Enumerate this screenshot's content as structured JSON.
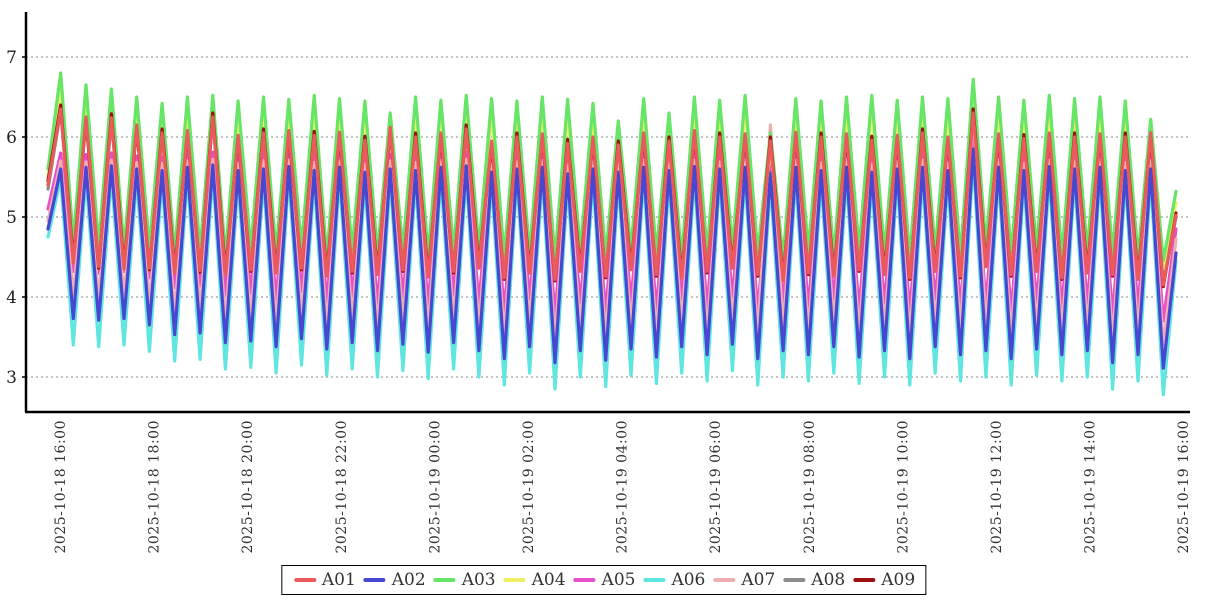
{
  "chart_data": {
    "type": "line",
    "title": "",
    "x_axis": {
      "tick_labels": [
        "2025-10-18 16:00",
        "2025-10-18 18:00",
        "2025-10-18 20:00",
        "2025-10-18 22:00",
        "2025-10-19 00:00",
        "2025-10-19 02:00",
        "2025-10-19 04:00",
        "2025-10-19 06:00",
        "2025-10-19 08:00",
        "2025-10-19 10:00",
        "2025-10-19 12:00",
        "2025-10-19 14:00",
        "2025-10-19 16:00"
      ]
    },
    "y_axis": {
      "ticks": [
        3,
        4,
        5,
        6,
        7
      ],
      "min": 2.56,
      "max": 7.5,
      "grid": "dashed"
    },
    "legend_position": "bottom-center",
    "axis_color": "#000000",
    "grid_color": "#888888",
    "series": [
      {
        "name": "A01",
        "color": "#ea5a5a",
        "z": 9,
        "values": [
          5.4,
          6.35,
          4.42,
          6.25,
          4.38,
          6.24,
          4.35,
          6.15,
          4.36,
          6.05,
          4.3,
          6.08,
          4.33,
          6.25,
          4.28,
          6.02,
          4.34,
          6.05,
          4.3,
          6.08,
          4.36,
          6.02,
          4.26,
          6.06,
          4.32,
          5.96,
          4.28,
          6.12,
          4.34,
          6.0,
          4.25,
          6.05,
          4.32,
          6.1,
          4.36,
          5.95,
          4.24,
          6.0,
          4.3,
          6.04,
          4.22,
          5.92,
          4.32,
          6.0,
          4.26,
          5.9,
          4.34,
          6.05,
          4.28,
          5.95,
          4.24,
          6.08,
          4.32,
          6.0,
          4.36,
          6.04,
          4.28,
          5.95,
          4.2,
          6.06,
          4.3,
          6.0,
          4.26,
          6.04,
          4.34,
          5.96,
          4.28,
          6.02,
          4.24,
          6.05,
          4.32,
          6.0,
          4.26,
          6.3,
          4.38,
          6.04,
          4.28,
          5.98,
          4.32,
          6.05,
          4.24,
          6.0,
          4.3,
          6.04,
          4.28,
          6.0,
          4.22,
          6.05,
          4.15,
          5.02
        ]
      },
      {
        "name": "A02",
        "color": "#4747d1",
        "z": 5,
        "values": [
          4.85,
          5.6,
          3.73,
          5.62,
          3.71,
          5.64,
          3.73,
          5.6,
          3.65,
          5.58,
          3.53,
          5.62,
          3.55,
          5.65,
          3.43,
          5.58,
          3.45,
          5.6,
          3.38,
          5.63,
          3.48,
          5.58,
          3.35,
          5.62,
          3.43,
          5.56,
          3.33,
          5.6,
          3.41,
          5.58,
          3.31,
          5.62,
          3.43,
          5.64,
          3.33,
          5.56,
          3.23,
          5.6,
          3.38,
          5.62,
          3.18,
          5.54,
          3.33,
          5.6,
          3.21,
          5.56,
          3.35,
          5.62,
          3.25,
          5.58,
          3.38,
          5.63,
          3.28,
          5.6,
          3.41,
          5.62,
          3.23,
          5.55,
          3.33,
          5.62,
          3.28,
          5.58,
          3.38,
          5.62,
          3.25,
          5.56,
          3.33,
          5.6,
          3.23,
          5.62,
          3.38,
          5.58,
          3.28,
          5.85,
          3.33,
          5.62,
          3.23,
          5.58,
          3.35,
          5.63,
          3.28,
          5.6,
          3.33,
          5.62,
          3.18,
          5.58,
          3.28,
          5.6,
          3.11,
          4.55
        ]
      },
      {
        "name": "A03",
        "color": "#66e566",
        "z": 7,
        "values": [
          5.6,
          6.8,
          4.7,
          6.65,
          4.65,
          6.6,
          4.6,
          6.5,
          4.62,
          6.42,
          4.55,
          6.5,
          4.58,
          6.52,
          4.52,
          6.45,
          4.6,
          6.5,
          4.55,
          6.47,
          4.62,
          6.52,
          4.5,
          6.48,
          4.58,
          6.45,
          4.55,
          6.3,
          4.6,
          6.5,
          4.52,
          6.46,
          4.58,
          6.52,
          4.62,
          6.48,
          4.5,
          6.45,
          4.55,
          6.5,
          4.48,
          6.47,
          4.58,
          6.42,
          4.52,
          6.2,
          4.6,
          6.48,
          4.55,
          6.3,
          4.5,
          6.5,
          4.58,
          6.46,
          4.62,
          6.52,
          4.55,
          6.05,
          4.48,
          6.48,
          4.58,
          6.45,
          4.52,
          6.5,
          4.6,
          6.52,
          4.55,
          6.46,
          4.5,
          6.5,
          4.58,
          6.48,
          4.52,
          6.72,
          4.65,
          6.5,
          4.55,
          6.46,
          4.6,
          6.52,
          4.52,
          6.48,
          4.58,
          6.5,
          4.55,
          6.45,
          4.5,
          6.22,
          4.45,
          5.32
        ]
      },
      {
        "name": "A04",
        "color": "#efef62",
        "z": 6,
        "values": [
          5.5,
          6.62,
          4.6,
          6.47,
          4.55,
          6.42,
          4.5,
          6.32,
          4.52,
          6.24,
          4.45,
          6.32,
          4.48,
          6.34,
          4.42,
          6.27,
          4.5,
          6.32,
          4.45,
          6.29,
          4.52,
          6.34,
          4.4,
          6.3,
          4.48,
          6.27,
          4.45,
          6.12,
          4.5,
          6.32,
          4.42,
          6.28,
          4.48,
          6.34,
          4.52,
          6.3,
          4.4,
          6.27,
          4.45,
          6.32,
          4.38,
          6.29,
          4.48,
          6.24,
          4.42,
          6.02,
          4.5,
          6.3,
          4.45,
          6.12,
          4.4,
          6.32,
          4.48,
          6.28,
          4.52,
          6.34,
          4.45,
          5.87,
          4.38,
          6.3,
          4.48,
          6.27,
          4.42,
          6.32,
          4.5,
          6.34,
          4.45,
          6.28,
          4.4,
          6.32,
          4.48,
          6.3,
          4.42,
          6.54,
          4.55,
          6.32,
          4.45,
          6.28,
          4.5,
          6.34,
          4.42,
          6.3,
          4.48,
          6.32,
          4.45,
          6.27,
          4.4,
          6.04,
          4.35,
          5.18
        ]
      },
      {
        "name": "A05",
        "color": "#e64fc8",
        "z": 2,
        "values": [
          5.1,
          5.8,
          4.32,
          5.78,
          4.3,
          5.8,
          4.32,
          5.76,
          4.24,
          5.75,
          4.12,
          5.78,
          4.14,
          5.81,
          4.02,
          5.75,
          4.04,
          5.78,
          3.97,
          5.8,
          4.07,
          5.76,
          3.94,
          5.78,
          4.02,
          5.74,
          3.92,
          5.78,
          4.0,
          5.76,
          3.9,
          5.79,
          4.02,
          5.81,
          3.92,
          5.74,
          3.82,
          5.77,
          3.97,
          5.79,
          3.77,
          5.72,
          3.92,
          5.77,
          3.8,
          5.74,
          3.94,
          5.79,
          3.84,
          5.75,
          3.97,
          5.8,
          3.87,
          5.77,
          4.0,
          5.79,
          3.82,
          5.73,
          3.92,
          5.79,
          3.87,
          5.76,
          3.97,
          5.79,
          3.84,
          5.74,
          3.92,
          5.77,
          3.82,
          5.79,
          3.97,
          5.76,
          3.87,
          6.0,
          3.92,
          5.79,
          3.82,
          5.75,
          3.94,
          5.8,
          3.87,
          5.77,
          3.92,
          5.79,
          3.77,
          5.76,
          3.87,
          5.78,
          3.7,
          4.85
        ]
      },
      {
        "name": "A06",
        "color": "#5fe6e0",
        "z": 4,
        "values": [
          4.75,
          5.48,
          3.4,
          5.5,
          3.38,
          5.52,
          3.4,
          5.48,
          3.32,
          5.46,
          3.2,
          5.5,
          3.22,
          5.53,
          3.1,
          5.46,
          3.12,
          5.48,
          3.05,
          5.51,
          3.15,
          5.46,
          3.02,
          5.5,
          3.1,
          5.44,
          3.0,
          5.48,
          3.08,
          5.46,
          2.98,
          5.5,
          3.1,
          5.52,
          3.0,
          5.44,
          2.9,
          5.48,
          3.05,
          5.5,
          2.85,
          5.42,
          3.0,
          5.48,
          2.88,
          5.44,
          3.02,
          5.5,
          2.92,
          5.46,
          3.05,
          5.51,
          2.95,
          5.48,
          3.08,
          5.5,
          2.9,
          5.43,
          3.0,
          5.5,
          2.95,
          5.46,
          3.05,
          5.5,
          2.92,
          5.44,
          3.0,
          5.48,
          2.9,
          5.5,
          3.05,
          5.46,
          2.95,
          5.72,
          3.0,
          5.5,
          2.9,
          5.46,
          3.02,
          5.51,
          2.95,
          5.48,
          3.0,
          5.5,
          2.85,
          5.46,
          2.95,
          5.48,
          2.78,
          4.45
        ]
      },
      {
        "name": "A07",
        "color": "#f0aeb2",
        "z": 3,
        "values": [
          4.95,
          5.7,
          4.02,
          5.69,
          4.0,
          5.71,
          4.02,
          5.68,
          3.94,
          5.67,
          3.82,
          5.7,
          3.84,
          5.72,
          3.72,
          5.67,
          3.74,
          5.7,
          3.67,
          5.71,
          3.77,
          5.68,
          3.64,
          5.7,
          3.72,
          5.66,
          3.62,
          5.7,
          3.7,
          5.68,
          3.6,
          5.71,
          3.72,
          5.72,
          3.62,
          5.66,
          3.52,
          5.69,
          3.67,
          5.71,
          3.47,
          5.65,
          3.62,
          5.69,
          3.5,
          5.66,
          3.64,
          5.71,
          3.54,
          5.67,
          3.67,
          5.71,
          3.57,
          5.69,
          3.7,
          5.71,
          3.52,
          6.15,
          3.62,
          5.71,
          3.57,
          5.68,
          3.67,
          5.71,
          3.54,
          5.66,
          3.62,
          5.69,
          3.52,
          5.71,
          3.67,
          5.68,
          3.57,
          6.35,
          3.62,
          5.71,
          3.52,
          5.67,
          3.64,
          5.71,
          3.57,
          5.69,
          3.62,
          5.71,
          3.47,
          5.68,
          3.57,
          5.7,
          3.4,
          4.72
        ]
      },
      {
        "name": "A08",
        "color": "#8c8c8c",
        "z": 1,
        "values": [
          5.35,
          6.33,
          4.44,
          6.23,
          4.4,
          6.22,
          4.37,
          6.13,
          4.38,
          6.03,
          4.32,
          6.06,
          4.35,
          6.23,
          4.3,
          6.0,
          4.36,
          6.03,
          4.32,
          6.06,
          4.38,
          6.0,
          4.28,
          6.04,
          4.34,
          5.94,
          4.3,
          6.1,
          4.36,
          5.98,
          4.27,
          6.03,
          4.34,
          6.08,
          4.38,
          5.93,
          4.26,
          5.98,
          4.32,
          6.02,
          4.24,
          5.9,
          4.34,
          5.98,
          4.28,
          5.88,
          4.36,
          6.03,
          4.3,
          5.93,
          4.26,
          6.06,
          4.34,
          5.98,
          4.38,
          6.02,
          4.3,
          5.93,
          4.22,
          6.04,
          4.32,
          5.98,
          4.28,
          6.02,
          4.36,
          5.94,
          4.3,
          6.0,
          4.26,
          6.03,
          4.34,
          5.98,
          4.28,
          6.28,
          4.4,
          6.02,
          4.3,
          5.96,
          4.34,
          6.03,
          4.26,
          5.98,
          4.32,
          6.02,
          4.3,
          5.98,
          4.24,
          6.03,
          4.17,
          5.0
        ]
      },
      {
        "name": "A09",
        "color": "#9c1010",
        "z": 8,
        "values": [
          5.45,
          6.4,
          4.46,
          6.22,
          4.36,
          6.29,
          4.39,
          6.12,
          4.34,
          6.1,
          4.34,
          6.05,
          4.31,
          6.3,
          4.32,
          5.99,
          4.32,
          6.1,
          4.34,
          6.05,
          4.34,
          6.07,
          4.3,
          6.03,
          4.3,
          6.01,
          4.32,
          6.09,
          4.32,
          6.05,
          4.29,
          6.02,
          4.3,
          6.15,
          4.4,
          5.92,
          4.22,
          6.05,
          4.34,
          6.01,
          4.2,
          5.97,
          4.36,
          5.97,
          4.24,
          5.95,
          4.38,
          6.02,
          4.26,
          6.0,
          4.28,
          6.05,
          4.3,
          6.05,
          4.4,
          6.01,
          4.26,
          6.0,
          4.24,
          6.03,
          4.28,
          6.05,
          4.3,
          6.01,
          4.32,
          6.01,
          4.32,
          5.99,
          4.22,
          6.1,
          4.36,
          5.97,
          4.24,
          6.35,
          4.42,
          6.01,
          4.26,
          6.03,
          4.36,
          6.02,
          4.22,
          6.05,
          4.34,
          6.01,
          4.26,
          6.05,
          4.26,
          6.02,
          4.13,
          5.05
        ]
      }
    ]
  }
}
